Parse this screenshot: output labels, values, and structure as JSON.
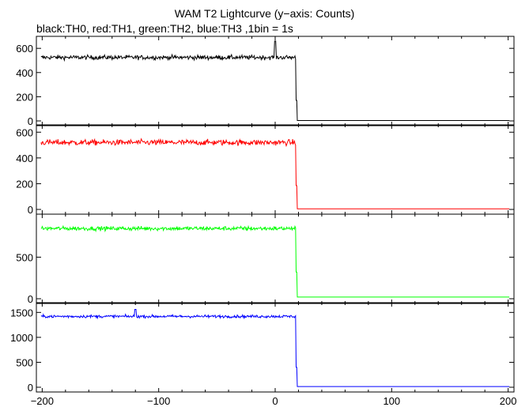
{
  "chart_data": {
    "type": "line",
    "title": "WAM T2 Lightcurve (y−axis: Counts)",
    "subtitle": "black:TH0, red:TH1, green:TH2, blue:TH3 ,1bin = 1s",
    "xlabel": "",
    "xlim": [
      -205,
      205
    ],
    "x_ticks": [
      -200,
      -100,
      0,
      100,
      200
    ],
    "x_tick_labels": [
      "−200",
      "−100",
      "0",
      "100",
      "200"
    ],
    "cutoff_x": 18,
    "grid": false,
    "panels": [
      {
        "series": "TH0",
        "color": "#000000",
        "ylim": [
          0,
          660
        ],
        "y_ticks": [
          0,
          200,
          400,
          600
        ],
        "y_tick_labels": [
          "0",
          "200",
          "400",
          "600"
        ],
        "level_before": 525,
        "noise": 18,
        "spike_x": 0,
        "spike_value": 660,
        "transition_value": 170,
        "level_after": 3
      },
      {
        "series": "TH1",
        "color": "#ff0000",
        "ylim": [
          0,
          620
        ],
        "y_ticks": [
          0,
          200,
          400,
          600
        ],
        "y_tick_labels": [
          "0",
          "200",
          "400",
          "600"
        ],
        "level_before": 520,
        "noise": 22,
        "spike_x": null,
        "spike_value": null,
        "transition_value": 185,
        "level_after": 5
      },
      {
        "series": "TH2",
        "color": "#00ff00",
        "ylim": [
          0,
          960
        ],
        "y_ticks": [
          0,
          500
        ],
        "y_tick_labels": [
          "0",
          "500"
        ],
        "level_before": 845,
        "noise": 25,
        "spike_x": null,
        "spike_value": null,
        "transition_value": 320,
        "level_after": 20
      },
      {
        "series": "TH3",
        "color": "#0000ff",
        "ylim": [
          0,
          1600
        ],
        "y_ticks": [
          0,
          500,
          1000,
          1500
        ],
        "y_tick_labels": [
          "0",
          "500",
          "1000",
          "1500"
        ],
        "level_before": 1420,
        "noise": 28,
        "spike_x": -120,
        "spike_value": 1560,
        "transition_value": 400,
        "level_after": 15
      }
    ]
  }
}
